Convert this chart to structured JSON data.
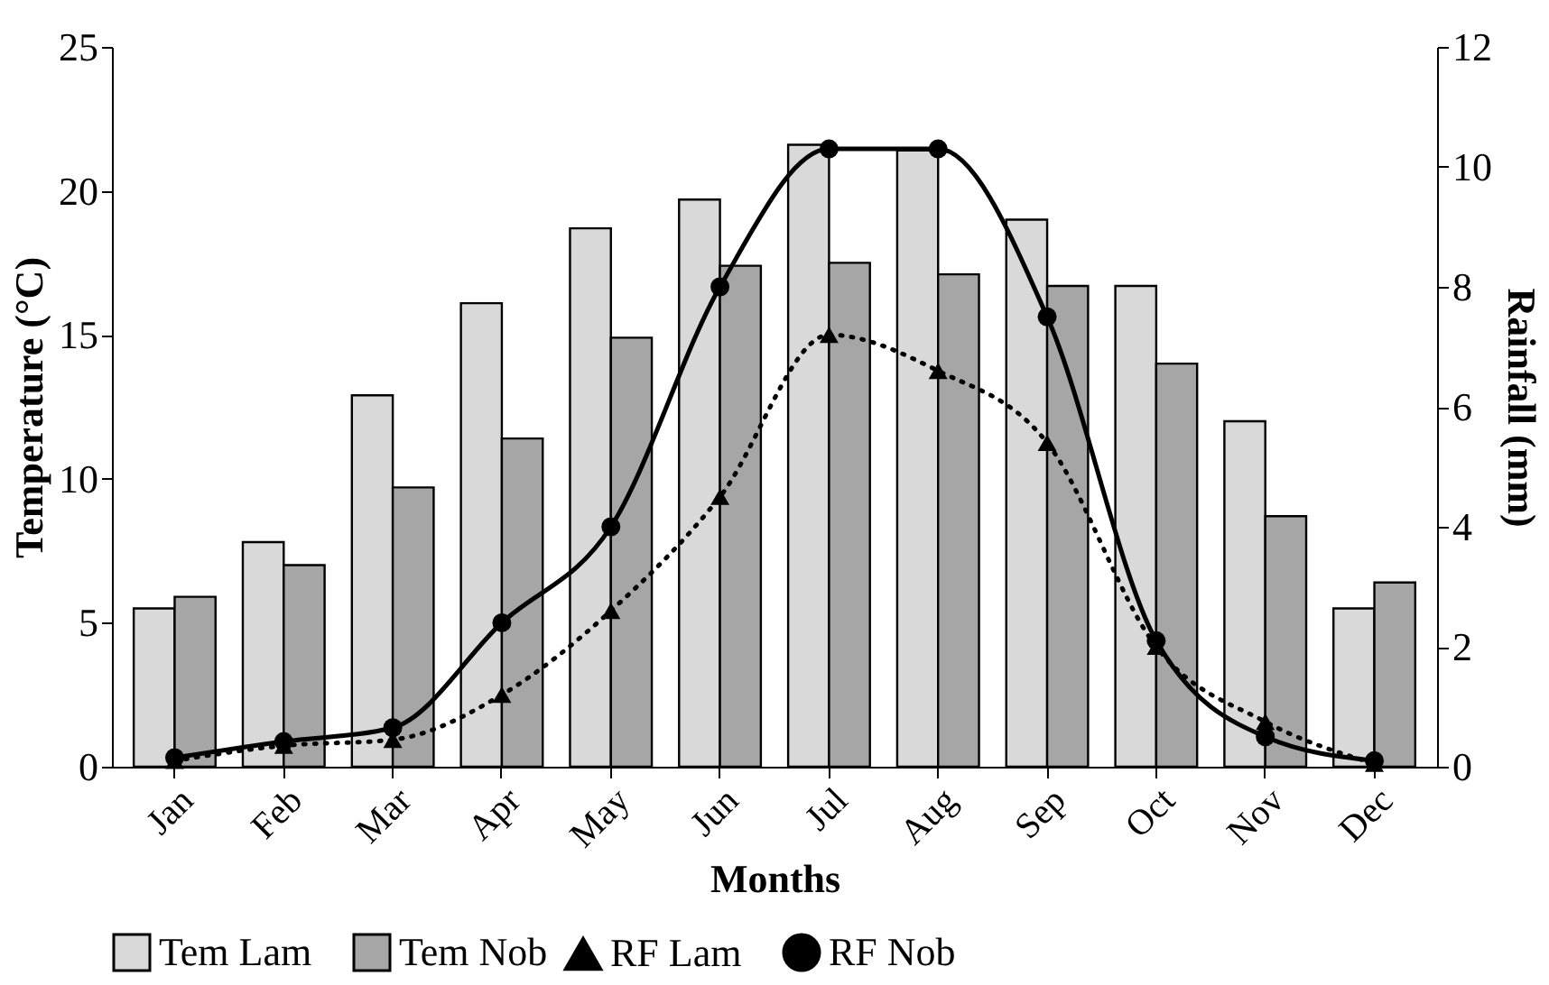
{
  "chart_data": {
    "type": "bar",
    "xlabel": "Months",
    "ylabel": "Temperature (°C)",
    "y2label": "Rainfall (mm)",
    "categories": [
      "Jan",
      "Feb",
      "Mar",
      "Apr",
      "May",
      "Jun",
      "Jul",
      "Aug",
      "Sep",
      "Oct",
      "Nov",
      "Dec"
    ],
    "series": [
      {
        "name": "Tem Lam",
        "color": "#d9d9d9",
        "values": [
          5.5,
          7.8,
          12.9,
          16.1,
          18.7,
          19.7,
          21.6,
          21.4,
          19.0,
          16.7,
          12.0,
          5.5
        ]
      },
      {
        "name": "Tem Nob",
        "color": "#a6a6a6",
        "values": [
          5.9,
          7.0,
          9.7,
          11.4,
          14.9,
          17.4,
          17.5,
          17.1,
          16.7,
          14.0,
          8.7,
          6.4
        ]
      },
      {
        "name": "RF Lam",
        "type": "line",
        "axis": "y2",
        "color": "#000000",
        "marker": "triangle",
        "line_style": "dotted",
        "values": [
          0.1,
          0.35,
          0.45,
          1.2,
          2.6,
          4.5,
          7.2,
          6.6,
          5.4,
          2.0,
          0.75,
          0.05
        ]
      },
      {
        "name": "RF Nob",
        "type": "line",
        "axis": "y2",
        "color": "#000000",
        "marker": "circle",
        "line_style": "solid",
        "values": [
          0.15,
          0.42,
          0.65,
          2.4,
          4.0,
          8.0,
          10.3,
          10.3,
          7.5,
          2.1,
          0.5,
          0.1
        ]
      }
    ],
    "ylim": [
      0,
      25
    ],
    "yticks": [
      0,
      5,
      10,
      15,
      20,
      25
    ],
    "y2lim": [
      0,
      12
    ],
    "y2ticks": [
      0,
      2,
      4,
      6,
      8,
      10,
      12
    ],
    "grid": false,
    "legend": "bottom"
  }
}
